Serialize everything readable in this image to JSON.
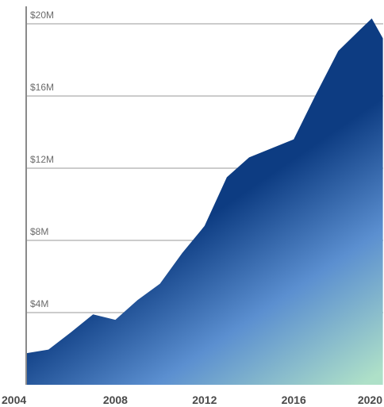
{
  "chart_data": {
    "type": "area",
    "title": "",
    "xlabel": "",
    "ylabel": "",
    "x": [
      2004,
      2005,
      2006,
      2007,
      2008,
      2009,
      2010,
      2011,
      2012,
      2013,
      2014,
      2015,
      2016,
      2017,
      2018,
      2019,
      2019.5,
      2020
    ],
    "series": [
      {
        "values": [
          1.75,
          1.95,
          2.9,
          3.9,
          3.6,
          4.7,
          5.6,
          7.3,
          8.8,
          11.5,
          12.6,
          13.1,
          13.6,
          16.1,
          18.5,
          19.7,
          20.3,
          19.2
        ]
      }
    ],
    "xlim": [
      2004,
      2020
    ],
    "ylim": [
      0,
      20
    ],
    "x_ticks": [
      "2004",
      "2008",
      "2012",
      "2016",
      "2020"
    ],
    "y_ticks": [
      "$4M",
      "$8M",
      "$12M",
      "$16M",
      "$20M"
    ],
    "y_tick_values": [
      4,
      8,
      12,
      16,
      20
    ],
    "x_tick_values": [
      2004,
      2008,
      2012,
      2016,
      2020
    ],
    "grid": true,
    "legend": "none",
    "colors": {
      "fill_top": "#0d3c82",
      "fill_mid": "#5b8fd0",
      "fill_bottom": "#aee0c8",
      "grid": "#9a9a9a",
      "axis": "#8a8a8a"
    }
  }
}
